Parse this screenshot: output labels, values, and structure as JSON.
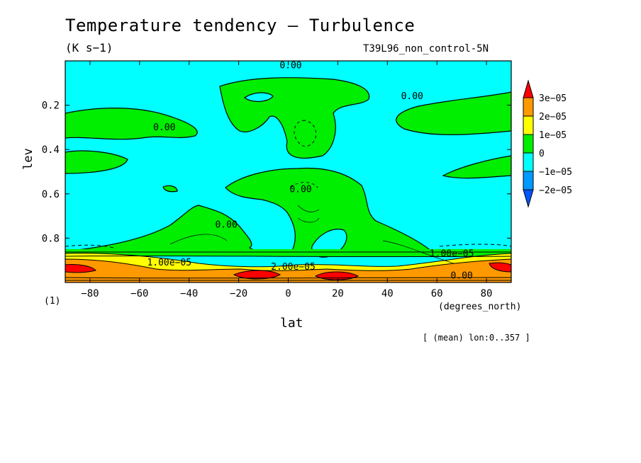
{
  "chart_data": {
    "type": "heatmap",
    "title": "Temperature tendency — Turbulence",
    "units": "(K s−1)",
    "run_label": "T39L96_non_control-5N",
    "xlabel": "lat",
    "x_units": "(degrees_north)",
    "ylabel": "lev",
    "y_units_marker": "(1)",
    "footer": "[ (mean) lon:0..357 ]",
    "xlim": [
      -90,
      90
    ],
    "ylim": [
      0,
      1
    ],
    "y_reversed": true,
    "x_ticks": [
      -80,
      -60,
      -40,
      -20,
      0,
      20,
      40,
      60,
      80
    ],
    "x_tick_labels": [
      "−80",
      "−60",
      "−40",
      "−20",
      "0",
      "20",
      "40",
      "60",
      "80"
    ],
    "y_ticks": [
      0.2,
      0.4,
      0.6,
      0.8
    ],
    "y_tick_labels": [
      "0.2",
      "0.4",
      "0.6",
      "0.8"
    ],
    "colorbar": {
      "labels": [
        "3e−05",
        "2e−05",
        "1e−05",
        "0",
        "−1e−05",
        "−2e−05"
      ],
      "colors": [
        "#ff0000",
        "#ff9900",
        "#ffff00",
        "#00ee00",
        "#00ffff",
        "#0099ff",
        "#0055ff"
      ],
      "placement": "right"
    },
    "contour_labels": [
      {
        "text": "0.00",
        "lat": 1,
        "lev": 0.02
      },
      {
        "text": "0.00",
        "lat": 50,
        "lev": 0.16
      },
      {
        "text": "0.00",
        "lat": -50,
        "lev": 0.3
      },
      {
        "text": "0.00",
        "lat": 5,
        "lev": 0.58
      },
      {
        "text": "0.00",
        "lat": -25,
        "lev": 0.74
      },
      {
        "text": "1.00e−05",
        "lat": 66,
        "lev": 0.87
      },
      {
        "text": "1.00e−05",
        "lat": -48,
        "lev": 0.91
      },
      {
        "text": "2.00e−05",
        "lat": 2,
        "lev": 0.93
      },
      {
        "text": "0.00",
        "lat": 70,
        "lev": 0.97
      }
    ]
  }
}
